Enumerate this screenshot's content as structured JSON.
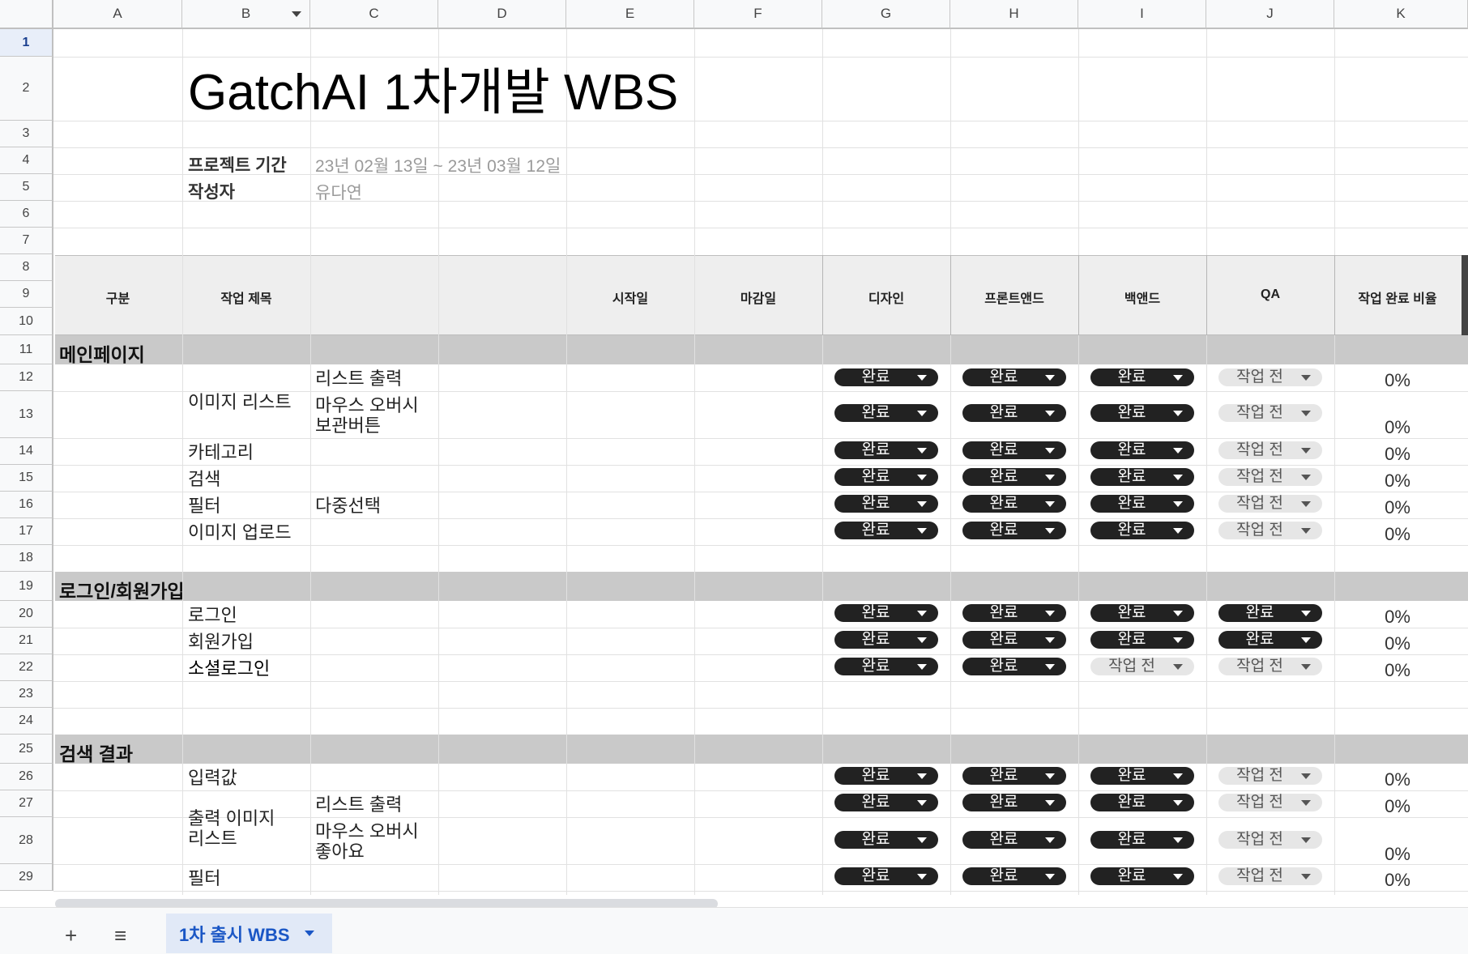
{
  "columns": [
    "A",
    "B",
    "C",
    "D",
    "E",
    "F",
    "G",
    "H",
    "I",
    "J",
    "K"
  ],
  "rows": [
    "1",
    "2",
    "3",
    "4",
    "5",
    "6",
    "7",
    "8",
    "9",
    "10",
    "11",
    "12",
    "13",
    "14",
    "15",
    "16",
    "17",
    "18",
    "19",
    "20",
    "21",
    "22",
    "23",
    "24",
    "25",
    "26",
    "27",
    "28",
    "29"
  ],
  "selected_row": "1",
  "title": "GatchAI 1차개발 WBS",
  "meta": {
    "period_label": "프로젝트 기간",
    "period_value": "23년 02월 13일 ~ 23년 03월 12일",
    "author_label": "작성자",
    "author_value": "유다연"
  },
  "table_headers": {
    "category": "구분",
    "task": "작업 제목",
    "start": "시작일",
    "due": "마감일",
    "design": "디자인",
    "frontend": "프론트앤드",
    "backend": "백앤드",
    "qa": "QA",
    "ratio": "작업 완료 비율"
  },
  "status_values": {
    "done": "완료",
    "todo": "작업 전"
  },
  "status_colors": {
    "done_bg": "#222222",
    "todo_bg": "#e6e6e6"
  },
  "sections": {
    "main": "메인페이지",
    "login": "로그인/회원가입",
    "search": "검색 결과"
  },
  "cells": {
    "r12_c": "리스트 출력",
    "r12_b": "이미지 리스트",
    "r13_c1": "마우스 오버시",
    "r13_c2": "보관버튼",
    "r14_b": "카테고리",
    "r15_b": "검색",
    "r16_b": "필터",
    "r16_c": "다중선택",
    "r17_b": "이미지 업로드",
    "r20_b": "로그인",
    "r21_b": "회원가입",
    "r22_b": "소셜로그인",
    "r26_b": "입력값",
    "r27_b1": "출력 이미지",
    "r27_b2": "리스트",
    "r27_c": "리스트 출력",
    "r28_c1": "마우스 오버시",
    "r28_c2": "좋아요",
    "r29_b": "필터"
  },
  "pct": "0%",
  "sheet_tab": "1차 출시 WBS",
  "tab_icons": [
    "add-sheet-icon",
    "all-sheets-menu-icon"
  ],
  "add_label": "+",
  "menu_label": "≡"
}
